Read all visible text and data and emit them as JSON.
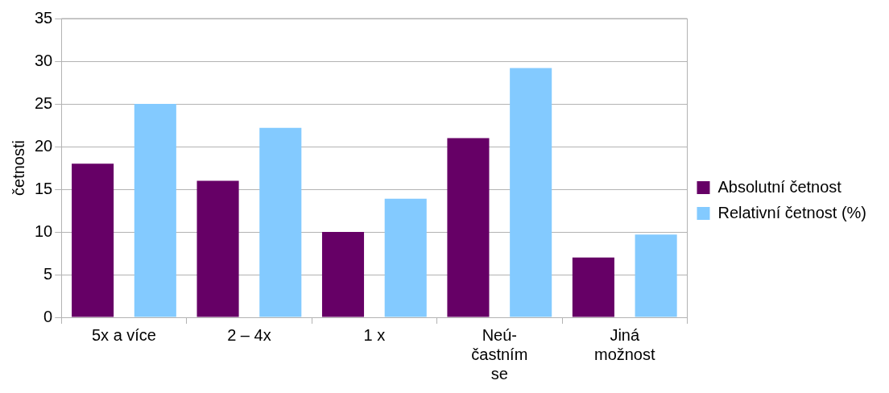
{
  "chart_data": {
    "type": "bar",
    "ylabel": "četnosti",
    "categories": [
      "5x a více",
      "2 – 4x",
      "1 x",
      "Neú-\nčastním\nse",
      "Jiná\nmožnost"
    ],
    "series": [
      {
        "name": "Absolutní četnost",
        "color": "#660066",
        "values": [
          18,
          16,
          10,
          21,
          7
        ]
      },
      {
        "name": "Relativní četnost (%)",
        "color": "#83caff",
        "values": [
          25,
          22.2,
          13.9,
          29.2,
          9.7
        ]
      }
    ],
    "ylim": [
      0,
      35
    ],
    "yticks": [
      0,
      5,
      10,
      15,
      20,
      25,
      30,
      35
    ],
    "grid": "y",
    "legend": "right"
  }
}
